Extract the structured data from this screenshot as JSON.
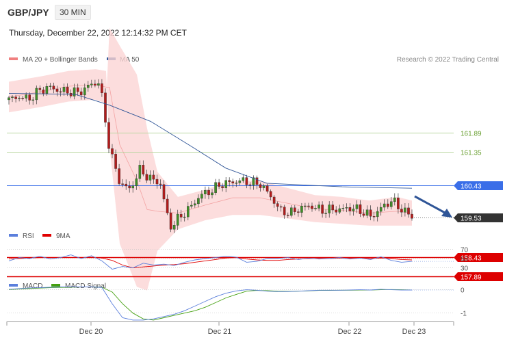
{
  "header": {
    "pair": "GBP/JPY",
    "timeframe": "30 MIN",
    "timestamp": "Thursday, December 22, 2022 12:14:32 PM CET"
  },
  "legend": {
    "bollinger": "MA 20 + Bollinger Bands",
    "ma50": "MA 50",
    "credit": "Research © 2022 Trading Central",
    "rsi": "RSI",
    "rsi_ma": "9MA",
    "macd": "MACD",
    "macd_signal": "MACD Signal"
  },
  "colors": {
    "bollinger": "#f08080",
    "ma50": "#2f5597",
    "rsi": "#5b7fdc",
    "rsi_ma": "#e00000",
    "macd": "#5b7fdc",
    "macd_signal": "#44a010",
    "resistance": "#6aa032",
    "pivot": "#3a6ee8",
    "support": "#dd0000",
    "current": "#333333"
  },
  "chart_data": {
    "type": "line",
    "series": [
      {
        "name": "MA 50",
        "values": [
          162.98,
          162.95,
          162.65,
          162.2,
          161.5,
          160.9,
          160.48,
          160.38,
          160.34
        ]
      }
    ],
    "x_tick_labels": [
      "Dec 20",
      "Dec 21",
      "Dec 22",
      "Dec 23"
    ],
    "price_levels": [
      {
        "name": "resistance-2",
        "value": 161.89,
        "label": "161.89"
      },
      {
        "name": "resistance-1",
        "value": 161.35,
        "label": "161.35"
      },
      {
        "name": "pivot",
        "value": 160.43,
        "label": "160.43"
      },
      {
        "name": "current",
        "value": 159.53,
        "label": "159.53"
      },
      {
        "name": "support-1",
        "value": 158.43,
        "label": "158.43"
      },
      {
        "name": "support-2",
        "value": 157.89,
        "label": "157.89"
      }
    ],
    "price_path": [
      162.8,
      162.88,
      162.82,
      163.05,
      163.15,
      163.05,
      163.02,
      163.0,
      163.2,
      163.3,
      161.4,
      160.5,
      160.3,
      160.85,
      160.6,
      160.5,
      159.25,
      159.55,
      159.8,
      160.15,
      160.25,
      160.45,
      160.5,
      160.55,
      160.5,
      160.45,
      160.1,
      159.7,
      159.65,
      159.8,
      159.85,
      159.72,
      159.75,
      159.75,
      159.8,
      159.7,
      159.55,
      159.8,
      160.0,
      159.75,
      159.55
    ],
    "indicators": {
      "rsi": {
        "tick_labels": [
          "70",
          "50",
          "30"
        ],
        "ylim": [
          0,
          100
        ],
        "values": [
          45,
          52,
          50,
          55,
          49,
          52,
          58,
          50,
          56,
          45,
          27,
          33,
          30,
          40,
          36,
          38,
          35,
          42,
          47,
          50,
          52,
          55,
          53,
          42,
          44,
          50,
          50,
          52,
          48,
          51,
          49,
          50,
          52,
          49,
          51,
          48,
          54,
          46,
          42,
          44
        ],
        "ma_values": [
          49,
          50,
          51,
          52,
          52,
          52,
          52,
          52,
          53,
          51,
          46,
          36,
          30,
          32,
          34,
          36,
          37,
          39,
          42,
          45,
          48,
          51,
          52,
          49,
          47,
          46,
          46,
          48,
          49,
          50,
          50,
          50,
          51,
          50,
          51,
          50,
          51,
          50,
          48,
          47
        ]
      },
      "macd": {
        "tick_labels": [
          "0",
          "-1"
        ],
        "ylim": [
          -1.45,
          0.4
        ],
        "values": [
          0.02,
          0.05,
          0.08,
          0.09,
          0.11,
          0.12,
          0.12,
          0.12,
          0.12,
          0.1,
          -0.6,
          -1.2,
          -1.3,
          -1.3,
          -1.25,
          -1.15,
          -1.05,
          -0.9,
          -0.7,
          -0.5,
          -0.3,
          -0.15,
          -0.05,
          0.0,
          -0.02,
          -0.06,
          -0.08,
          -0.08,
          -0.06,
          -0.04,
          -0.02,
          -0.02,
          -0.02,
          -0.01,
          0.0,
          -0.01,
          0.02,
          0.0,
          -0.01,
          -0.01
        ],
        "signal_values": [
          0.01,
          0.03,
          0.05,
          0.07,
          0.09,
          0.1,
          0.11,
          0.12,
          0.12,
          0.11,
          -0.1,
          -0.6,
          -1.0,
          -1.25,
          -1.3,
          -1.2,
          -1.1,
          -1.0,
          -0.9,
          -0.75,
          -0.55,
          -0.35,
          -0.2,
          -0.06,
          -0.03,
          -0.04,
          -0.06,
          -0.07,
          -0.06,
          -0.05,
          -0.03,
          -0.03,
          -0.02,
          -0.02,
          -0.01,
          -0.01,
          0.0,
          0.01,
          0.0,
          -0.01
        ]
      }
    }
  }
}
